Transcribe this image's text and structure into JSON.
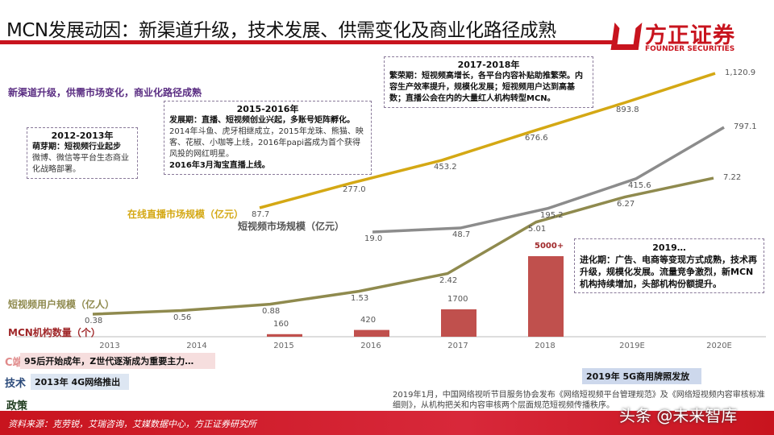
{
  "header": {
    "title": "MCN发展动因：新渠道升级，技术发展、供需变化及商业化路径成熟",
    "logo_cn": "方正证券",
    "logo_en": "FOUNDER SECURITIES"
  },
  "headline": "新渠道升级，供需市场变化，商业化路径成熟",
  "stages": [
    {
      "period": "2012-2013年",
      "bold": "萌芽期：短视频行业起步",
      "text": "微博、微信等平台生态商业化战略部署。",
      "extra": ""
    },
    {
      "period": "2015-2016年",
      "bold": "发展期：直播、短视频创业兴起，多账号矩阵孵化。",
      "text": "2014年斗鱼、虎牙相继成立，2015年龙珠、熊猫、映客、花椒、小咖等上线，2016年papi酱成为首个获得风投的网红明星。",
      "extra": "2016年3月淘宝直播上线。"
    },
    {
      "period": "2017-2018年",
      "bold": "繁荣期：短视频高增长，各平台内容补贴助推繁荣。内容生产效率提升，规模化发展；短视频用户达到高基数；直播公会在内的大量红人机构转型MCN。",
      "text": "",
      "extra": ""
    },
    {
      "period": "2019…",
      "bold": "进化期：广告、电商等变现方式成熟，技术再升级，规模化发展。流量竞争激烈，新MCN机构持续增加，头部机构份额提升。",
      "text": "",
      "extra": ""
    }
  ],
  "chart_data": {
    "type": "line",
    "categories": [
      "2013",
      "2014",
      "2015",
      "2016",
      "2017",
      "2018",
      "2019E",
      "2020E"
    ],
    "series": [
      {
        "name": "在线直播市场规模（亿元）",
        "type": "line",
        "color": "#d4a814",
        "x": [
          "2015",
          "2016",
          "2017",
          "2018",
          "2019E",
          "2020E"
        ],
        "values": [
          87.7,
          277.0,
          453.2,
          676.6,
          893.8,
          1120.9
        ],
        "labels": [
          "87.7",
          "277.0",
          "453.2",
          "676.6",
          "893.8",
          "1,120.9"
        ]
      },
      {
        "name": "短视频市场规模（亿元）",
        "type": "line",
        "color": "#8c8c8c",
        "x": [
          "2016",
          "2017",
          "2018",
          "2019E",
          "2020E"
        ],
        "values": [
          19.0,
          48.7,
          195.2,
          415.6,
          797.1
        ],
        "labels": [
          "19.0",
          "48.7",
          "195.2",
          "415.6",
          "797.1"
        ]
      },
      {
        "name": "短视频用户规模（亿人）",
        "type": "line",
        "color": "#8f8a4e",
        "x": [
          "2013",
          "2014",
          "2015",
          "2016",
          "2017",
          "2018",
          "2019E",
          "2020E"
        ],
        "values": [
          0.38,
          0.56,
          0.88,
          1.53,
          2.42,
          5.01,
          6.27,
          7.22
        ],
        "labels": [
          "0.38",
          "0.56",
          "0.88",
          "1.53",
          "2.42",
          "5.01",
          "6.27",
          "7.22"
        ]
      },
      {
        "name": "MCN机构数量（个）",
        "type": "bar",
        "color": "#c0504d",
        "x": [
          "2015",
          "2016",
          "2017",
          "2018"
        ],
        "values": [
          160,
          420,
          1700,
          5000
        ],
        "labels": [
          "160",
          "420",
          "1700",
          "5000+"
        ]
      }
    ]
  },
  "rows": {
    "c_label": "C端",
    "c_text": "95后开始成年，Z世代逐渐成为重要主力…",
    "tech_label": "技术",
    "tech_text": "2013年 4G网络推出",
    "tech_2019": "2019年 5G商用牌照发放",
    "policy_label": "政策",
    "policy_text": "2019年1月，中国网络视听节目服务协会发布《网络短视频平台管理规范》及《网络短视频内容审核标准细则》，从机构把关和内容审核两个层面规范短视频传播秩序。"
  },
  "footer": {
    "source": "资料来源：克劳锐，艾瑞咨询，艾媒数据中心，方正证券研究所",
    "watermark": "头条 @未来智库"
  }
}
